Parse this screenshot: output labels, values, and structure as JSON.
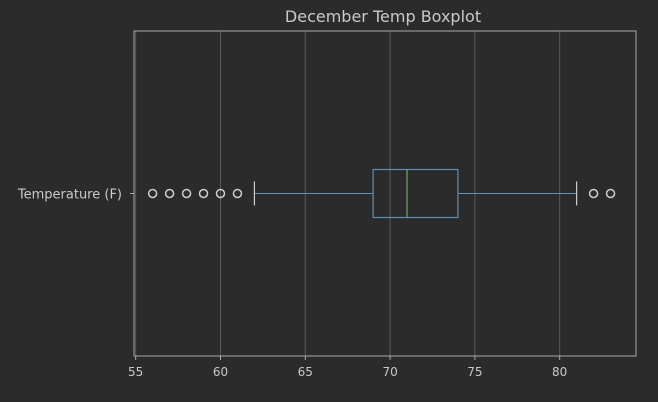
{
  "chart_data": {
    "type": "boxplot",
    "orientation": "horizontal",
    "title": "December Temp Boxplot",
    "xlabel": "",
    "ylabel": "",
    "xlim": [
      54.9,
      84.5
    ],
    "x_ticks": [
      55,
      60,
      65,
      70,
      75,
      80
    ],
    "grid": true,
    "series": [
      {
        "name": "Temperature (F)",
        "whisker_low": 62,
        "q1": 69,
        "median": 71,
        "q3": 74,
        "whisker_high": 81,
        "outliers": [
          56,
          57,
          58,
          59,
          60,
          61,
          82,
          83
        ]
      }
    ]
  },
  "colors": {
    "background": "#2b2b2b",
    "axes_frame": "#a9a9a9",
    "grid": "#5a5a5a",
    "text": "#c9c9c9",
    "box": "#5f8fb5",
    "median": "#5fb25f",
    "whisker": "#5f8fb5",
    "cap": "#cfcfcf",
    "outlier_edge": "#cfcfcf"
  }
}
